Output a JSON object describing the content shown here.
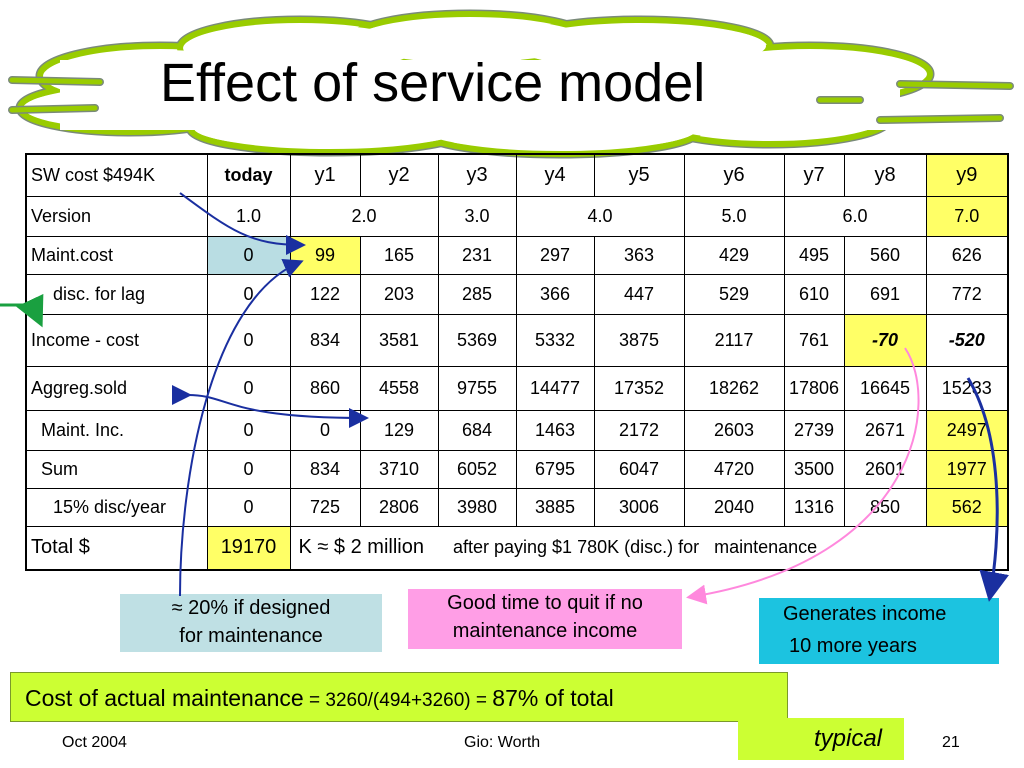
{
  "title": "Effect of service model",
  "table": {
    "header": {
      "label": "SW cost $494K",
      "today": "today",
      "years": [
        "y1",
        "y2",
        "y3",
        "y4",
        "y5",
        "y6",
        "y7",
        "y8",
        "y9"
      ]
    },
    "version": {
      "label": "Version",
      "today": "1.0",
      "v2": "2.0",
      "v3": "3.0",
      "v4": "4.0",
      "v5": "5.0",
      "v6": "6.0",
      "v7": "7.0"
    },
    "rows": [
      {
        "label": "Maint.cost",
        "values": [
          "0",
          "99",
          "165",
          "231",
          "297",
          "363",
          "429",
          "495",
          "560",
          "626"
        ]
      },
      {
        "label": "disc. for lag",
        "values": [
          "0",
          "122",
          "203",
          "285",
          "366",
          "447",
          "529",
          "610",
          "691",
          "772"
        ]
      },
      {
        "label": "Income - cost",
        "values": [
          "0",
          "834",
          "3581",
          "5369",
          "5332",
          "3875",
          "2117",
          "761",
          "-70",
          "-520"
        ]
      },
      {
        "label": "Aggreg.sold",
        "values": [
          "0",
          "860",
          "4558",
          "9755",
          "14477",
          "17352",
          "18262",
          "17806",
          "16645",
          "15233"
        ]
      },
      {
        "label": "Maint. Inc.",
        "values": [
          "0",
          "0",
          "129",
          "684",
          "1463",
          "2172",
          "2603",
          "2739",
          "2671",
          "2497"
        ]
      },
      {
        "label": "Sum",
        "values": [
          "0",
          "834",
          "3710",
          "6052",
          "6795",
          "6047",
          "4720",
          "3500",
          "2601",
          "1977"
        ]
      },
      {
        "label": "15% disc/year",
        "values": [
          "0",
          "725",
          "2806",
          "3980",
          "3885",
          "3006",
          "2040",
          "1316",
          "850",
          "562"
        ]
      }
    ],
    "total": {
      "label": "Total $",
      "value": "19170",
      "k": "K ≈ $ 2 million",
      "note": "after paying $1 780K (disc.) for   maintenance"
    }
  },
  "notes": {
    "designed": [
      "≈ 20% if designed",
      "for maintenance"
    ],
    "quit": [
      "Good time to quit if no",
      "maintenance income"
    ],
    "income": [
      "Generates income",
      "10 more years"
    ]
  },
  "cost": {
    "lead": "Cost of actual maintenance",
    "formula": " = 3260/(494+3260) = ",
    "tail": "87% of total"
  },
  "typical": "typical",
  "footer": {
    "date": "Oct 2004",
    "author": "Gio: Worth",
    "page": "21"
  }
}
